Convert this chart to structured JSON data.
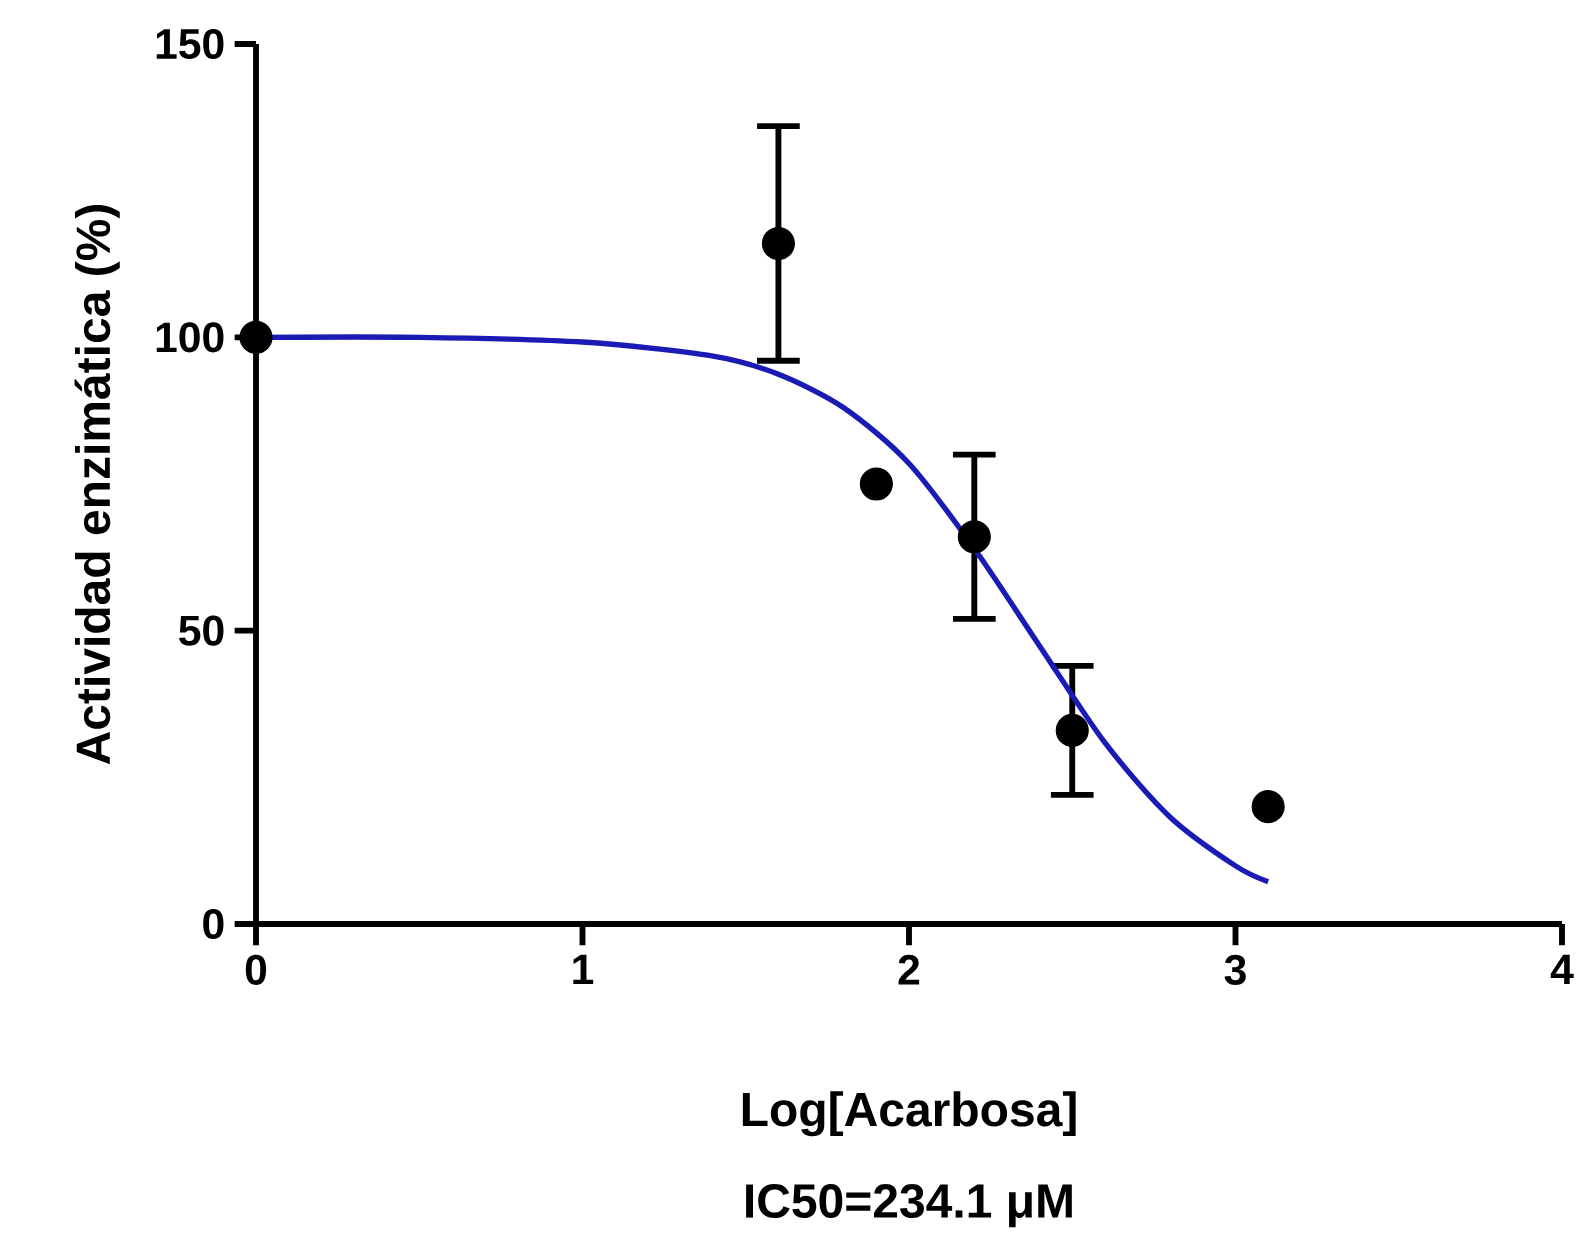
{
  "chart_data": {
    "type": "scatter",
    "xlabel": "Log[Acarbosa]",
    "ylabel": "Actividad enzimática (%)",
    "annotations": [
      "IC50=234.1 μM"
    ],
    "xlim": [
      0,
      4
    ],
    "ylim": [
      0,
      150
    ],
    "xticks": [
      0,
      1,
      2,
      3,
      4
    ],
    "yticks": [
      0,
      50,
      100,
      150
    ],
    "grid": false,
    "marker": "circle",
    "series": [
      {
        "color": "#000000",
        "x": [
          0,
          1.6,
          1.9,
          2.2,
          2.5,
          3.1
        ],
        "values": [
          100,
          116,
          75,
          66,
          33,
          20
        ],
        "errors": [
          null,
          20,
          null,
          14,
          11,
          null
        ]
      },
      {
        "type": "line",
        "color": "#1a1ab4",
        "marker": "none",
        "line_style": "solid",
        "x": [
          0,
          0.5,
          1.0,
          1.4,
          1.6,
          1.8,
          2.0,
          2.2,
          2.4,
          2.6,
          2.8,
          3.0,
          3.1
        ],
        "values": [
          100,
          100,
          99.2,
          96.8,
          93.7,
          88,
          78.5,
          64,
          47.4,
          30.9,
          18.2,
          9.9,
          7.2
        ]
      }
    ]
  }
}
